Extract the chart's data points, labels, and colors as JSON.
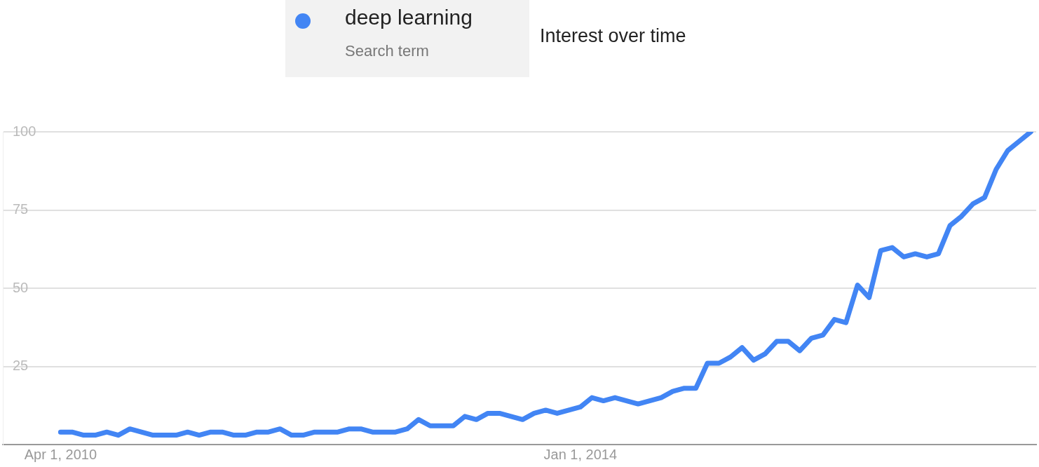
{
  "chart_data": {
    "type": "line",
    "title": "Interest over time",
    "legend_title": "Search term",
    "legend": "top",
    "grid": "y",
    "marker": "none",
    "line_style": "solid",
    "xlim": [
      "2009-11-01",
      "2017-04-15"
    ],
    "xticks": [
      {
        "value": "2010-04-01",
        "label": "Apr 1, 2010"
      },
      {
        "value": "2014-01-01",
        "label": "Jan 1, 2014"
      }
    ],
    "ylim": [
      0,
      100
    ],
    "yticks": [
      25,
      50,
      75,
      100
    ],
    "x": [
      "2010-04",
      "2010-05",
      "2010-06",
      "2010-07",
      "2010-08",
      "2010-09",
      "2010-10",
      "2010-11",
      "2010-12",
      "2011-01",
      "2011-02",
      "2011-03",
      "2011-04",
      "2011-05",
      "2011-06",
      "2011-07",
      "2011-08",
      "2011-09",
      "2011-10",
      "2011-11",
      "2011-12",
      "2012-01",
      "2012-02",
      "2012-03",
      "2012-04",
      "2012-05",
      "2012-06",
      "2012-07",
      "2012-08",
      "2012-09",
      "2012-10",
      "2012-11",
      "2012-12",
      "2013-01",
      "2013-02",
      "2013-03",
      "2013-04",
      "2013-05",
      "2013-06",
      "2013-07",
      "2013-08",
      "2013-09",
      "2013-10",
      "2013-11",
      "2013-12",
      "2014-01",
      "2014-02",
      "2014-03",
      "2014-04",
      "2014-05",
      "2014-06",
      "2014-07",
      "2014-08",
      "2014-09",
      "2014-10",
      "2014-11",
      "2014-12",
      "2015-01",
      "2015-02",
      "2015-03",
      "2015-04",
      "2015-05",
      "2015-06",
      "2015-07",
      "2015-08",
      "2015-09",
      "2015-10",
      "2015-11",
      "2015-12",
      "2016-01",
      "2016-02",
      "2016-03",
      "2016-04",
      "2016-05",
      "2016-06",
      "2016-07",
      "2016-08",
      "2016-09",
      "2016-10",
      "2016-11",
      "2016-12",
      "2017-01",
      "2017-02",
      "2017-03",
      "2017-04"
    ],
    "series": [
      {
        "name": "deep learning",
        "color": "#4285f4",
        "values": [
          4,
          4,
          3,
          3,
          4,
          3,
          5,
          4,
          3,
          3,
          3,
          4,
          3,
          4,
          4,
          3,
          3,
          4,
          4,
          5,
          3,
          3,
          4,
          4,
          4,
          5,
          5,
          4,
          4,
          4,
          5,
          8,
          6,
          6,
          6,
          9,
          8,
          10,
          10,
          9,
          8,
          10,
          11,
          10,
          11,
          12,
          15,
          14,
          15,
          14,
          13,
          14,
          15,
          17,
          18,
          18,
          26,
          26,
          28,
          31,
          27,
          29,
          33,
          33,
          30,
          34,
          35,
          40,
          39,
          51,
          47,
          62,
          63,
          60,
          61,
          60,
          61,
          70,
          73,
          77,
          79,
          88,
          94,
          97,
          100
        ]
      }
    ]
  }
}
